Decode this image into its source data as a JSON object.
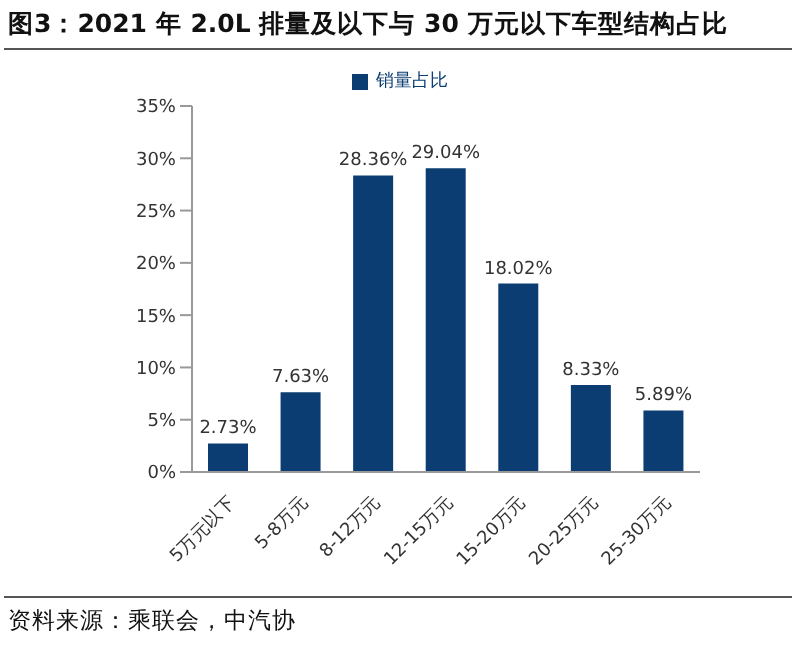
{
  "chart_data": {
    "type": "bar",
    "title": "图3：2021 年 2.0L 排量及以下与 30 万元以下车型结构占比",
    "categories": [
      "5万元以下",
      "5-8万元",
      "8-12万元",
      "12-15万元",
      "15-20万元",
      "20-25万元",
      "25-30万元"
    ],
    "series": [
      {
        "name": "销量占比",
        "color": "#0b3d72",
        "values": [
          2.73,
          7.63,
          28.36,
          29.04,
          18.02,
          8.33,
          5.89
        ],
        "value_labels": [
          "2.73%",
          "7.63%",
          "28.36%",
          "29.04%",
          "18.02%",
          "8.33%",
          "5.89%"
        ]
      }
    ],
    "ylim": [
      0,
      35
    ],
    "yticks": [
      {
        "value": 0,
        "label": "0%"
      },
      {
        "value": 5,
        "label": "5%"
      },
      {
        "value": 10,
        "label": "10%"
      },
      {
        "value": 15,
        "label": "15%"
      },
      {
        "value": 20,
        "label": "20%"
      },
      {
        "value": 25,
        "label": "25%"
      },
      {
        "value": 30,
        "label": "30%"
      },
      {
        "value": 35,
        "label": "35%"
      }
    ],
    "grid": false,
    "legend": "top",
    "annotations": [
      "资料来源：乘联会，中汽协"
    ]
  }
}
